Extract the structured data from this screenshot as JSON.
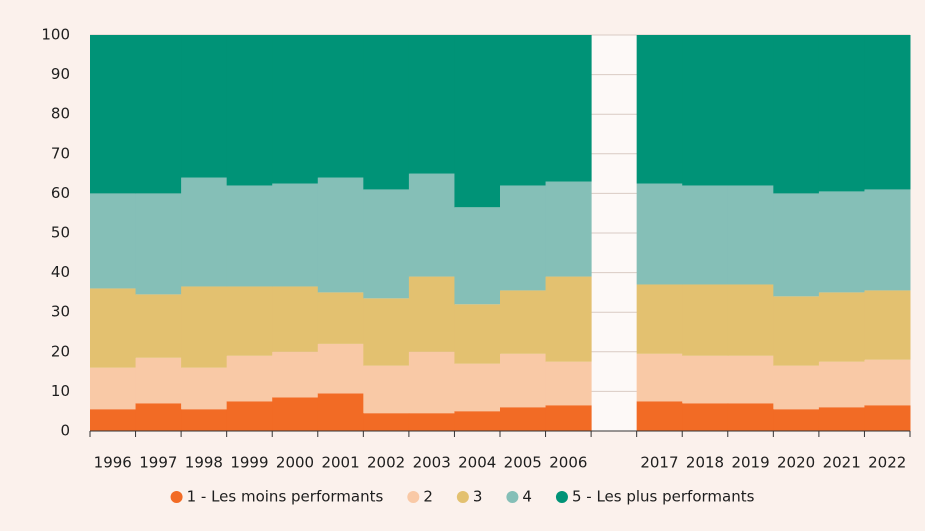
{
  "chart_data": {
    "type": "stacked_bar",
    "categories": [
      "1996",
      "1997",
      "1998",
      "1999",
      "2000",
      "2001",
      "2002",
      "2003",
      "2004",
      "2005",
      "2006",
      null,
      "2017",
      "2018",
      "2019",
      "2020",
      "2021",
      "2022"
    ],
    "series": [
      {
        "name": "1 - Les moins performants",
        "color": "#f26b25",
        "values": [
          5.5,
          7,
          5.5,
          7.5,
          8.5,
          9.5,
          4.5,
          4.5,
          5,
          6,
          6.5,
          null,
          7.5,
          7,
          7,
          5.5,
          6,
          6.5
        ]
      },
      {
        "name": "2",
        "color": "#f9c9a6",
        "values": [
          10.5,
          11.5,
          10.5,
          11.5,
          11.5,
          12.5,
          12,
          15.5,
          12,
          13.5,
          11,
          null,
          12,
          12,
          12,
          11,
          11.5,
          11.5
        ]
      },
      {
        "name": "3",
        "color": "#e3c170",
        "values": [
          20,
          16,
          20.5,
          17.5,
          16.5,
          13,
          17,
          19,
          15,
          16,
          21.5,
          null,
          17.5,
          18,
          18,
          17.5,
          17.5,
          17.5
        ]
      },
      {
        "name": "4",
        "color": "#85bfb7",
        "values": [
          24,
          25.5,
          27.5,
          25.5,
          26,
          29,
          27.5,
          26,
          24.5,
          26.5,
          24,
          null,
          25.5,
          25,
          25,
          26,
          25.5,
          25.5
        ]
      },
      {
        "name": "5 - Les plus performants",
        "color": "#009377",
        "values": [
          40,
          40,
          36,
          38,
          37.5,
          36,
          39,
          35,
          43.5,
          38,
          37,
          null,
          37.5,
          38,
          38,
          40,
          39.5,
          39
        ]
      }
    ],
    "ylim": [
      0,
      100
    ],
    "yticks": [
      0,
      10,
      20,
      30,
      40,
      50,
      60,
      70,
      80,
      90,
      100
    ],
    "grid": true
  }
}
